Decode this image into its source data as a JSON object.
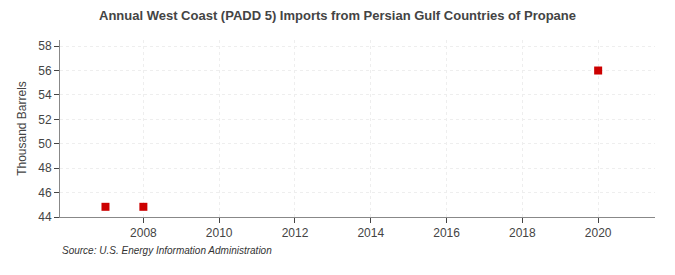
{
  "chart_data": {
    "type": "scatter",
    "title": "Annual West Coast (PADD 5) Imports from Persian Gulf Countries of Propane",
    "ylabel": "Thousand Barrels",
    "annotations": [
      "Source: U.S. Energy Information Administration"
    ],
    "x": [
      2007,
      2008,
      2020
    ],
    "values": [
      44.835,
      44.835,
      56.0
    ],
    "color": "#cc0000",
    "marker": "square",
    "xlim": [
      2005.8,
      2021.5
    ],
    "xticks": [
      2008,
      2010,
      2012,
      2014,
      2016,
      2018,
      2020
    ],
    "ylim": [
      44,
      58.5
    ],
    "yticks": [
      44,
      46,
      48,
      50,
      52,
      54,
      56,
      58
    ],
    "grid": true
  }
}
